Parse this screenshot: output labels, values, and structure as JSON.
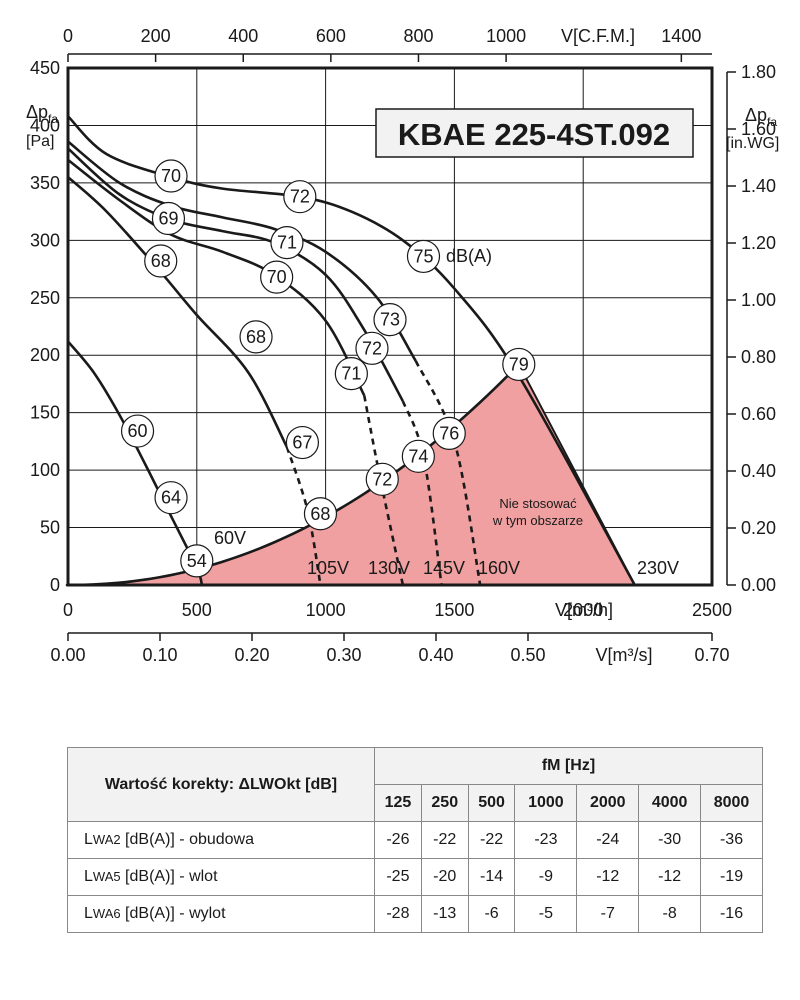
{
  "chart_data": {
    "type": "line",
    "title": "KBAE 225-4ST.092",
    "axes": {
      "x_bottom": {
        "label": "V[m³/h]",
        "ticks": [
          "0",
          "500",
          "1000",
          "1500",
          "2000",
          "2500"
        ],
        "range": [
          0,
          2500
        ]
      },
      "x_bottom2": {
        "label": "V[m³/s]",
        "ticks": [
          "0.00",
          "0.10",
          "0.20",
          "0.30",
          "0.40",
          "0.50",
          "0.70"
        ],
        "range": [
          0,
          0.7
        ]
      },
      "x_top": {
        "label": "V[C.F.M.]",
        "ticks": [
          "0",
          "200",
          "400",
          "600",
          "800",
          "1000",
          "1400"
        ],
        "range": [
          0,
          1400
        ]
      },
      "y_left": {
        "label_main": "Δp",
        "label_sub": "fa",
        "unit": "[Pa]",
        "ticks": [
          "0",
          "50",
          "100",
          "150",
          "200",
          "250",
          "300",
          "350",
          "400",
          "450"
        ],
        "range": [
          0,
          450
        ]
      },
      "y_right": {
        "label_main": "Δp",
        "label_sub": "fa",
        "unit": "[in.WG]",
        "ticks": [
          "0.00",
          "0.20",
          "0.40",
          "0.60",
          "0.80",
          "1.00",
          "1.20",
          "1.40",
          "1.60",
          "1.80"
        ],
        "range": [
          0,
          1.8
        ]
      }
    },
    "grid": true,
    "series": [
      {
        "name": "60V",
        "x": [
          0,
          100,
          200,
          300,
          400,
          500,
          520
        ],
        "y": [
          212,
          185,
          148,
          105,
          60,
          15,
          0
        ]
      },
      {
        "name": "105V",
        "x": [
          0,
          150,
          350,
          500,
          700,
          850,
          930,
          980
        ],
        "y": [
          355,
          325,
          275,
          235,
          185,
          120,
          65,
          0
        ]
      },
      {
        "name": "130V",
        "x": [
          0,
          200,
          400,
          600,
          800,
          1000,
          1150,
          1210,
          1300
        ],
        "y": [
          370,
          335,
          305,
          290,
          270,
          230,
          165,
          95,
          0
        ]
      },
      {
        "name": "145V",
        "x": [
          0,
          200,
          400,
          600,
          800,
          1000,
          1150,
          1300,
          1380,
          1450
        ],
        "y": [
          380,
          340,
          318,
          308,
          298,
          270,
          222,
          160,
          112,
          0
        ]
      },
      {
        "name": "160V",
        "x": [
          0,
          200,
          400,
          600,
          800,
          1000,
          1200,
          1350,
          1500,
          1600
        ],
        "y": [
          386,
          350,
          330,
          320,
          310,
          290,
          250,
          195,
          125,
          0
        ]
      },
      {
        "name": "230V",
        "x": [
          0,
          150,
          400,
          600,
          900,
          1100,
          1300,
          1500,
          1750,
          2200
        ],
        "y": [
          408,
          375,
          355,
          345,
          338,
          325,
          300,
          258,
          182,
          0
        ]
      }
    ],
    "curve_labels": [
      "60V",
      "105V",
      "130V",
      "145V",
      "160V",
      "230V"
    ],
    "noise_markers": [
      {
        "value": "70",
        "x": 400,
        "y": 356
      },
      {
        "value": "72",
        "x": 900,
        "y": 338
      },
      {
        "value": "75",
        "x": 1380,
        "y": 286
      },
      {
        "value": "79",
        "x": 1750,
        "y": 192
      },
      {
        "value": "69",
        "x": 390,
        "y": 319
      },
      {
        "value": "71",
        "x": 850,
        "y": 298
      },
      {
        "value": "73",
        "x": 1250,
        "y": 231
      },
      {
        "value": "76",
        "x": 1480,
        "y": 132
      },
      {
        "value": "68",
        "x": 360,
        "y": 282
      },
      {
        "value": "70",
        "x": 810,
        "y": 268
      },
      {
        "value": "72",
        "x": 1180,
        "y": 206
      },
      {
        "value": "74",
        "x": 1360,
        "y": 112
      },
      {
        "value": "68",
        "x": 730,
        "y": 216
      },
      {
        "value": "71",
        "x": 1100,
        "y": 184
      },
      {
        "value": "72",
        "x": 1220,
        "y": 92
      },
      {
        "value": "60",
        "x": 270,
        "y": 134
      },
      {
        "value": "67",
        "x": 910,
        "y": 124
      },
      {
        "value": "68",
        "x": 980,
        "y": 62
      },
      {
        "value": "64",
        "x": 400,
        "y": 76
      },
      {
        "value": "54",
        "x": 500,
        "y": 21
      }
    ],
    "dba_label": "dB(A)",
    "restricted_area": {
      "label_line1": "Nie stosować",
      "label_line2": "w tym obszarze",
      "color": "#f0a0a0"
    }
  },
  "correction_table": {
    "title": "Wartość korekty:  ΔLWOkt [dB]",
    "freq_header": "fM [Hz]",
    "frequencies": [
      "125",
      "250",
      "500",
      "1000",
      "2000",
      "4000",
      "8000"
    ],
    "rows": [
      {
        "label_pre": "L",
        "label_sub": "WA2",
        "label_post": " [dB(A)] - obudowa",
        "values": [
          "-26",
          "-22",
          "-22",
          "-23",
          "-24",
          "-30",
          "-36"
        ]
      },
      {
        "label_pre": "L",
        "label_sub": "WA5",
        "label_post": " [dB(A)] - wlot",
        "values": [
          "-25",
          "-20",
          "-14",
          "-9",
          "-12",
          "-12",
          "-19"
        ]
      },
      {
        "label_pre": "L",
        "label_sub": "WA6",
        "label_post": " [dB(A)] - wylot",
        "values": [
          "-28",
          "-13",
          "-6",
          "-5",
          "-7",
          "-8",
          "-16"
        ]
      }
    ]
  }
}
